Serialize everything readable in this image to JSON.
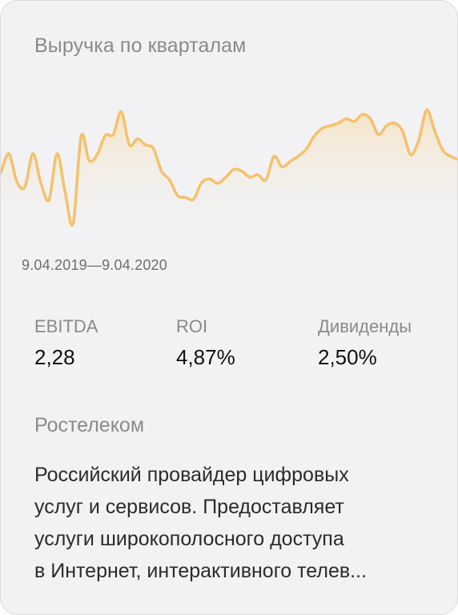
{
  "card": {
    "title": "Выручка по кварталам",
    "date_range": "9.04.2019—9.04.2020",
    "metrics": [
      {
        "label": "EBITDA",
        "value": "2,28"
      },
      {
        "label": "ROI",
        "value": "4,87%"
      },
      {
        "label": "Дивиденды",
        "value": "2,50%"
      }
    ],
    "company": "Ростелеком",
    "description_lines": [
      "Российский провайдер цифровых",
      "услуг и сервисов. Предоставляет",
      "услуги широкополосного доступа",
      "в Интернет, интерактивного телев..."
    ]
  },
  "chart_data": {
    "type": "area",
    "title": "",
    "xlabel": "",
    "ylabel": "",
    "x": [
      0,
      1,
      2,
      3,
      4,
      5,
      6,
      7,
      8,
      9,
      10,
      11,
      12,
      13,
      14,
      15,
      16,
      17,
      18,
      19,
      20,
      21,
      22,
      23,
      24,
      25,
      26,
      27,
      28,
      29,
      30,
      31,
      32,
      33,
      34,
      35,
      36,
      37,
      38,
      39,
      40,
      41,
      42,
      43,
      44,
      45,
      46,
      47,
      48,
      49,
      50,
      51,
      52,
      53,
      54,
      55,
      56,
      57
    ],
    "values": [
      78,
      100,
      68,
      62,
      100,
      66,
      47,
      100,
      56,
      20,
      120,
      92,
      99,
      121,
      122,
      148,
      110,
      117,
      110,
      106,
      80,
      70,
      52,
      50,
      48,
      67,
      71,
      66,
      73,
      82,
      80,
      73,
      76,
      70,
      97,
      85,
      91,
      97,
      105,
      120,
      129,
      132,
      135,
      140,
      137,
      145,
      140,
      122,
      132,
      135,
      126,
      99,
      115,
      150,
      126,
      104,
      97,
      93
    ],
    "ylim": [
      0,
      220
    ],
    "grid": false,
    "line_color": "#f5c16c",
    "fill_color": "#f5e1bc"
  }
}
